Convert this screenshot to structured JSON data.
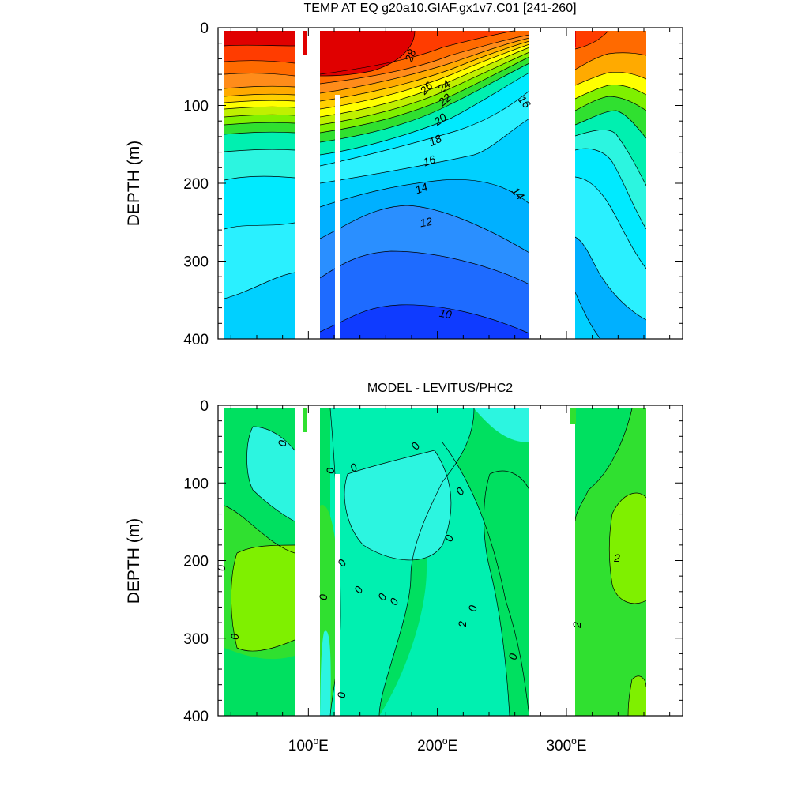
{
  "chart_data": [
    {
      "type": "contour",
      "title": "TEMP AT EQ g20a10.GIAF.gx1v7.C01 [241-260]",
      "ylabel": "DEPTH (m)",
      "xlabel": "",
      "xlim": [
        30,
        390
      ],
      "ylim": [
        400,
        0
      ],
      "y_ticks": [
        "0",
        "100",
        "200",
        "300",
        "400"
      ],
      "x_ticks": [
        {
          "value": 100,
          "label": "100",
          "sup": "o",
          "suffix": "E"
        },
        {
          "value": 200,
          "label": "200",
          "sup": "o",
          "suffix": "E"
        },
        {
          "value": 300,
          "label": "300",
          "sup": "o",
          "suffix": "E"
        }
      ],
      "contour_labels": [
        "28",
        "26",
        "24",
        "22",
        "20",
        "18",
        "16",
        "14",
        "12",
        "10",
        "16",
        "14"
      ],
      "ocean_segments": [
        [
          44,
          98
        ],
        [
          118,
          280
        ],
        [
          315,
          370
        ]
      ],
      "land_gaps": [
        [
          98,
          118
        ],
        [
          280,
          315
        ]
      ],
      "approx_values": {
        "warm_pool_surface_max": 29,
        "thermocline_depth_west_m": 150,
        "thermocline_depth_east_m": 50,
        "deep_min_value": 10
      },
      "colors": [
        "#0f3bff",
        "#1e6bff",
        "#2a8fff",
        "#00b0ff",
        "#00d0ff",
        "#00eaff",
        "#2cf5e0",
        "#00f0b0",
        "#00e060",
        "#30e030",
        "#7ff000",
        "#c0f000",
        "#ffff00",
        "#ffd000",
        "#ffaa00",
        "#ff8c1a",
        "#ff6a00",
        "#ff3c00",
        "#e00000"
      ]
    },
    {
      "type": "contour",
      "title": "MODEL - LEVITUS/PHC2",
      "ylabel": "DEPTH (m)",
      "xlabel": "",
      "xlim": [
        30,
        390
      ],
      "ylim": [
        400,
        0
      ],
      "y_ticks": [
        "0",
        "100",
        "200",
        "300",
        "400"
      ],
      "x_ticks": [
        {
          "value": 100,
          "label": "100",
          "sup": "o",
          "suffix": "E"
        },
        {
          "value": 200,
          "label": "200",
          "sup": "o",
          "suffix": "E"
        },
        {
          "value": 300,
          "label": "300",
          "sup": "o",
          "suffix": "E"
        }
      ],
      "contour_labels": [
        "0",
        "0",
        "0",
        "0",
        "0",
        "0",
        "0",
        "0",
        "0",
        "0",
        "0",
        "0",
        "0",
        "0",
        "0",
        "0",
        "2",
        "2",
        "2"
      ],
      "ocean_segments": [
        [
          44,
          98
        ],
        [
          118,
          280
        ],
        [
          315,
          370
        ]
      ],
      "land_gaps": [
        [
          98,
          118
        ],
        [
          280,
          315
        ]
      ],
      "approx_values": {
        "central_pacific_anomaly": -1,
        "western_indian_anomaly": 1,
        "atlantic_anomaly_max": 2
      },
      "colors": [
        "#00f0b0",
        "#2cf5e0",
        "#00e060",
        "#30e030",
        "#7ff000"
      ]
    }
  ]
}
